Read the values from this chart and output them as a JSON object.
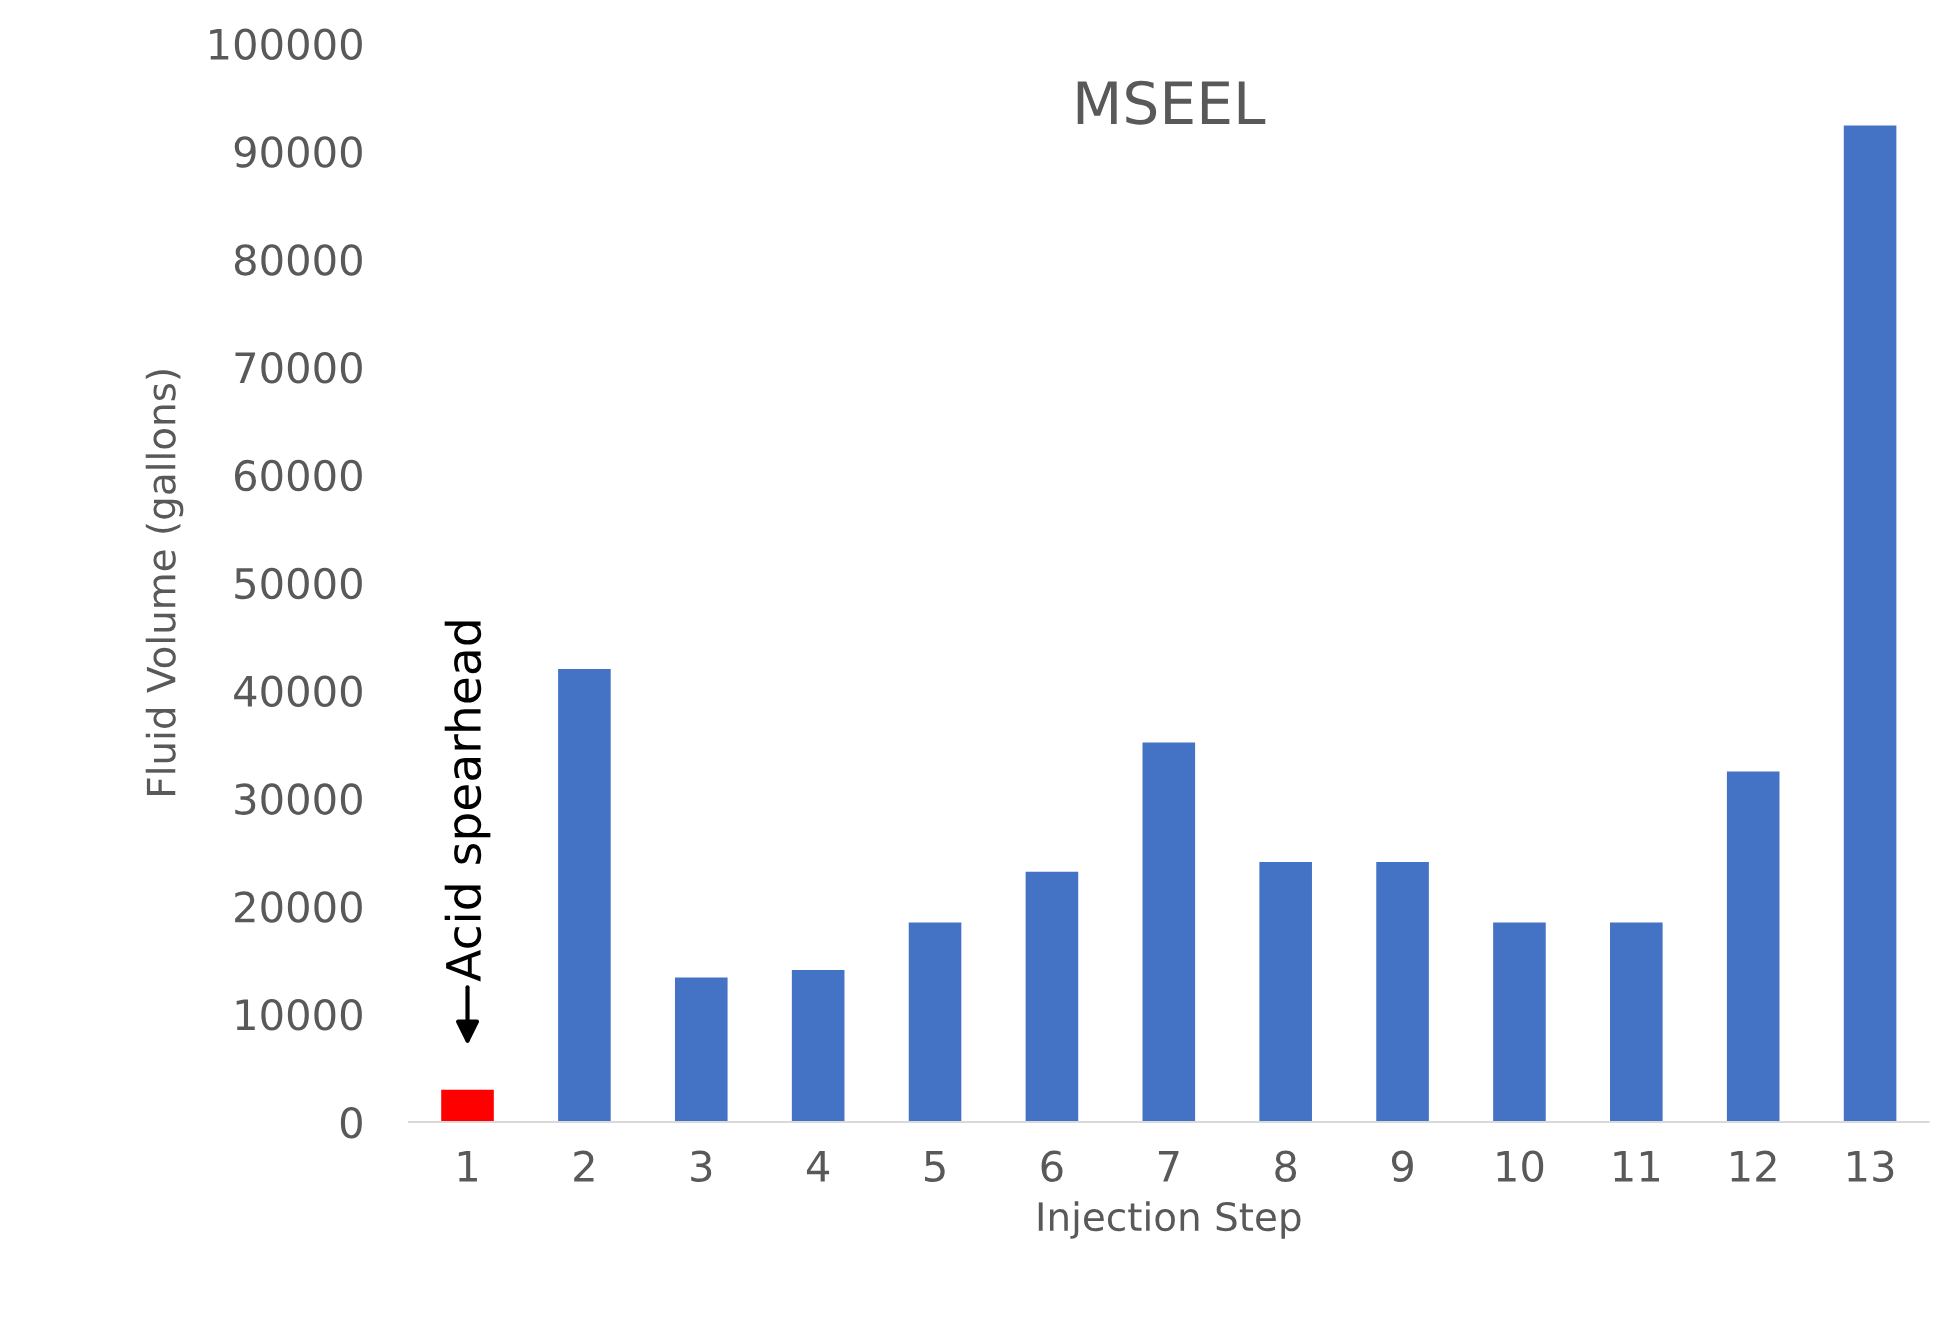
{
  "chart_data": {
    "type": "bar",
    "title": "MSEEL",
    "xlabel": "Injection Step",
    "ylabel": "Fluid Volume (gallons)",
    "categories": [
      "1",
      "2",
      "3",
      "4",
      "5",
      "6",
      "7",
      "8",
      "9",
      "10",
      "11",
      "12",
      "13"
    ],
    "values": [
      3000,
      42000,
      13400,
      14100,
      18500,
      23200,
      35200,
      24100,
      24100,
      18500,
      18500,
      32500,
      92400
    ],
    "colors": [
      "#ff0000",
      "#4472c4",
      "#4472c4",
      "#4472c4",
      "#4472c4",
      "#4472c4",
      "#4472c4",
      "#4472c4",
      "#4472c4",
      "#4472c4",
      "#4472c4",
      "#4472c4",
      "#4472c4"
    ],
    "ylim": [
      0,
      100000
    ],
    "yticks": [
      0,
      10000,
      20000,
      30000,
      40000,
      50000,
      60000,
      70000,
      80000,
      90000,
      100000
    ],
    "grid": false,
    "annotations": [
      {
        "text": "Acid spearhead",
        "x": "1",
        "y": 3000
      }
    ]
  }
}
